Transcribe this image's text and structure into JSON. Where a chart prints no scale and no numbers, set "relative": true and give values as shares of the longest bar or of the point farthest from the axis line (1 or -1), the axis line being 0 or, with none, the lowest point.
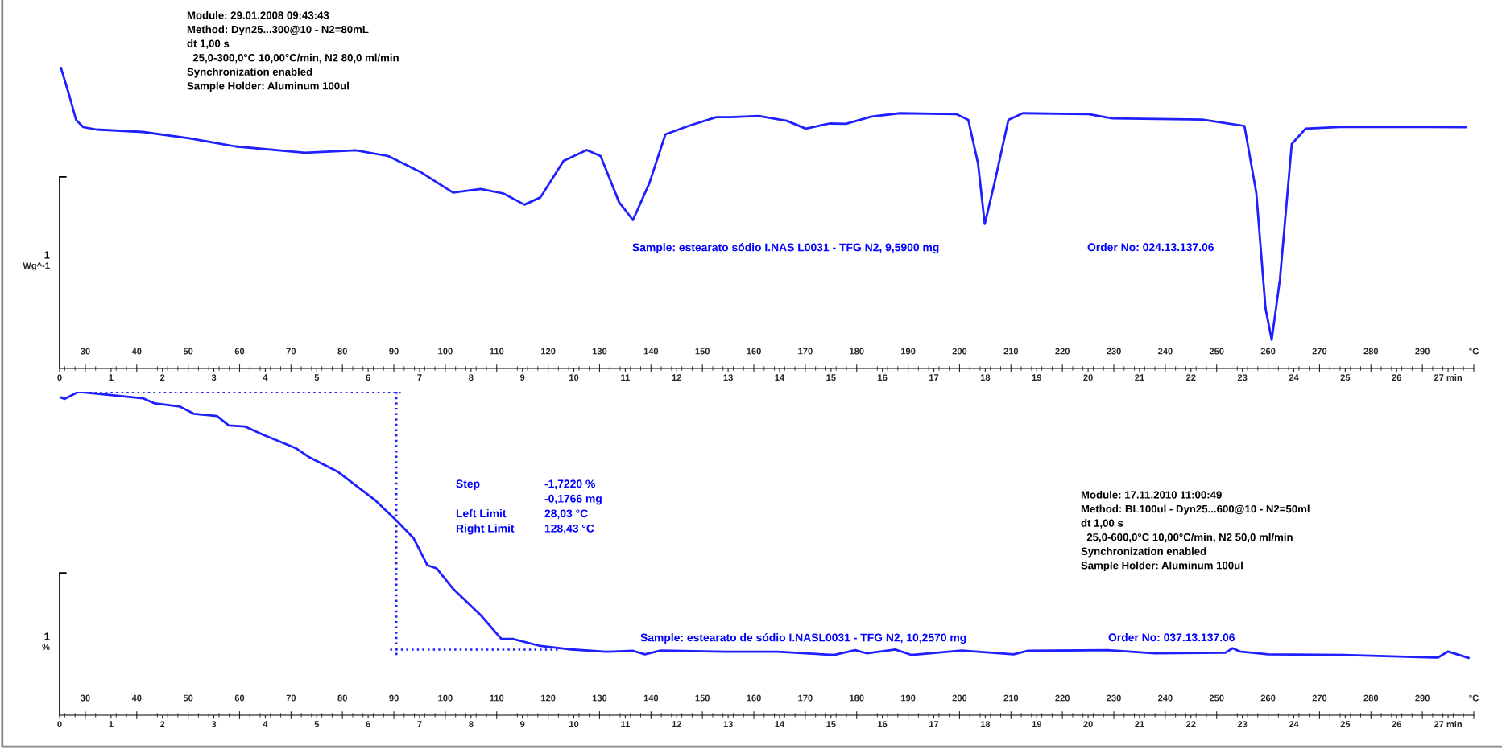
{
  "chart_data": [
    {
      "type": "line",
      "relative": true,
      "ylabel": "Wg^-1",
      "xlim": [
        25,
        300
      ],
      "xticks": [
        30,
        40,
        50,
        60,
        70,
        80,
        90,
        100,
        110,
        120,
        130,
        140,
        150,
        160,
        170,
        180,
        190,
        200,
        210,
        220,
        230,
        240,
        250,
        260,
        270,
        280,
        290,
        {
          "value": 300,
          "label": "°C"
        }
      ],
      "x2lim": [
        0,
        27.5
      ],
      "x2ticks": [
        0,
        1,
        2,
        3,
        4,
        5,
        6,
        7,
        8,
        9,
        10,
        11,
        12,
        13,
        14,
        15,
        16,
        17,
        18,
        19,
        20,
        21,
        22,
        23,
        24,
        25,
        26,
        {
          "value": 27,
          "label": "27 min"
        }
      ],
      "annotations": [
        "Module: 29.01.2008 09:43:43\nMethod: Dyn25...300@10 - N2=80mL\ndt 1,00 s\n  25,0-300,0°C 10,00°C/min, N2 80,0 ml/min\nSynchronization enabled\nSample Holder: Aluminum 100ul",
        "Sample: estearato sódio I.NAS L0031 - TFG N2, 9,5900 mg",
        "Order No: 024.13.137.06",
        "1"
      ],
      "series": [
        {
          "color": "#1f1fff",
          "x": [
            25.2,
            26.9,
            28.2,
            29.6,
            32.2,
            41.2,
            50.2,
            59.2,
            72.7,
            82.6,
            88.9,
            95.2,
            101.5,
            106.9,
            111.3,
            115.4,
            118.5,
            123.0,
            127.5,
            130.2,
            133.8,
            136.5,
            139.7,
            142.8,
            147.3,
            152.7,
            155.4,
            160.9,
            166.4,
            170.1,
            174.7,
            177.9,
            182.9,
            188.4,
            199.4,
            201.7,
            203.6,
            204.9,
            206.8,
            209.5,
            212.3,
            225.1,
            229.7,
            247.2,
            255.4,
            257.7,
            259.5,
            260.7,
            262.3,
            264.6,
            267.3,
            274.7,
            298.5
          ],
          "values": [
            1.0,
            0.904,
            0.824,
            0.8,
            0.792,
            0.784,
            0.763,
            0.736,
            0.715,
            0.723,
            0.704,
            0.651,
            0.583,
            0.595,
            0.58,
            0.543,
            0.567,
            0.688,
            0.724,
            0.704,
            0.551,
            0.492,
            0.615,
            0.776,
            0.804,
            0.833,
            0.833,
            0.837,
            0.821,
            0.795,
            0.812,
            0.811,
            0.835,
            0.846,
            0.843,
            0.824,
            0.679,
            0.479,
            0.615,
            0.824,
            0.846,
            0.843,
            0.829,
            0.825,
            0.804,
            0.583,
            0.199,
            0.095,
            0.295,
            0.744,
            0.795,
            0.801,
            0.8
          ]
        }
      ]
    },
    {
      "type": "line",
      "relative": true,
      "ylabel": "%",
      "xlim": [
        25,
        300
      ],
      "xticks": [
        30,
        40,
        50,
        60,
        70,
        80,
        90,
        100,
        110,
        120,
        130,
        140,
        150,
        160,
        170,
        180,
        190,
        200,
        210,
        220,
        230,
        240,
        250,
        260,
        270,
        280,
        290,
        {
          "value": 300,
          "label": "°C"
        }
      ],
      "x2lim": [
        0,
        27.5
      ],
      "x2ticks": [
        0,
        1,
        2,
        3,
        4,
        5,
        6,
        7,
        8,
        9,
        10,
        11,
        12,
        13,
        14,
        15,
        16,
        17,
        18,
        19,
        20,
        21,
        22,
        23,
        24,
        25,
        26,
        {
          "value": 27,
          "label": "27 min"
        }
      ],
      "annotations": [
        "Module: 17.11.2010 11:00:49\nMethod: BL100ul - Dyn25...600@10 - N2=50ml\ndt 1,00 s\n  25,0-600,0°C 10,00°C/min, N2 50,0 ml/min\nSynchronization enabled\nSample Holder: Aluminum 100ul",
        "Step\n\nLeft Limit\nRight Limit",
        "-1,7220 %\n-0,1766 mg\n28,03 °C\n128,43 °C",
        "Sample: estearato de sódio I.NASL0031 - TFG N2, 10,2570 mg",
        "Order No: 037.13.137.06",
        "1"
      ],
      "series": [
        {
          "color": "#1f1fff",
          "x": [
            25.2,
            26.0,
            28.7,
            35.0,
            41.2,
            43.5,
            48.4,
            51.1,
            55.6,
            57.9,
            61.0,
            64.6,
            70.9,
            73.6,
            79.0,
            86.2,
            90.7,
            93.8,
            96.5,
            98.3,
            101.5,
            106.9,
            110.9,
            113.1,
            118.5,
            123.9,
            131.2,
            136.5,
            138.8,
            141.9,
            154.5,
            164.6,
            175.6,
            179.7,
            182.0,
            187.5,
            190.7,
            200.4,
            210.5,
            213.2,
            228.8,
            238.0,
            251.7,
            253.1,
            254.5,
            260.0,
            274.7,
            293.0,
            295.0,
            299.0
          ],
          "values": [
            0.983,
            0.978,
            1.0,
            0.99,
            0.98,
            0.964,
            0.954,
            0.932,
            0.925,
            0.896,
            0.893,
            0.867,
            0.826,
            0.797,
            0.754,
            0.667,
            0.599,
            0.548,
            0.464,
            0.454,
            0.391,
            0.309,
            0.236,
            0.236,
            0.214,
            0.204,
            0.196,
            0.199,
            0.188,
            0.2,
            0.196,
            0.196,
            0.186,
            0.201,
            0.191,
            0.203,
            0.186,
            0.2,
            0.188,
            0.199,
            0.201,
            0.191,
            0.193,
            0.207,
            0.197,
            0.188,
            0.186,
            0.178,
            0.197,
            0.177
          ]
        },
        {
          "color": "#1f1fff",
          "line_style": "dotted",
          "x": [
            28.7,
            92.0,
            null,
            90.5,
            90.5,
            null,
            89.3,
            122.1
          ],
          "values": [
            1.0,
            1.0,
            null,
            1.0,
            0.185,
            null,
            0.203,
            0.203
          ]
        }
      ]
    }
  ]
}
